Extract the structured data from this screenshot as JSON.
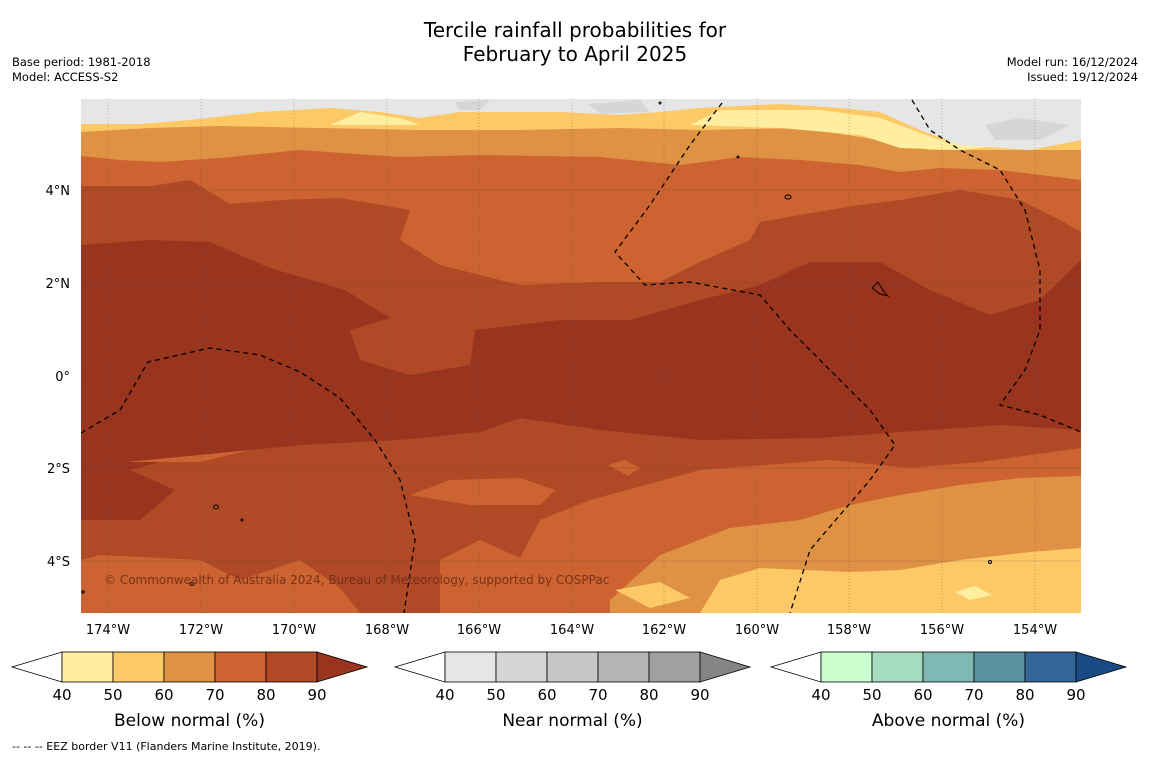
{
  "title": {
    "line1": "Tercile rainfall probabilities for",
    "line2": "February to April 2025"
  },
  "meta_left": {
    "base_period": "Base period: 1981-2018",
    "model": "Model: ACCESS-S2"
  },
  "meta_right": {
    "model_run": "Model run: 16/12/2024",
    "issued": "Issued: 19/12/2024"
  },
  "map": {
    "lon_labels": [
      "174°W",
      "172°W",
      "170°W",
      "168°W",
      "166°W",
      "164°W",
      "162°W",
      "160°W",
      "158°W",
      "156°W",
      "154°W"
    ],
    "lat_labels": [
      "4°N",
      "2°N",
      "0°",
      "2°S",
      "4°S"
    ],
    "copyright": "© Commonwealth of Australia 2024, Bureau of Meteorology, supported by COSPPac",
    "dominant_category": "Below normal",
    "dominant_range": "70-90"
  },
  "colorbars": [
    {
      "title": "Below normal (%)",
      "ticks": [
        "40",
        "50",
        "60",
        "70",
        "80",
        "90"
      ],
      "colors": [
        "#ffffff",
        "#ffeea0",
        "#fdc966",
        "#e09244",
        "#cc6331",
        "#b04a26",
        "#99341e"
      ]
    },
    {
      "title": "Near normal (%)",
      "ticks": [
        "40",
        "50",
        "60",
        "70",
        "80",
        "90"
      ],
      "colors": [
        "#ffffff",
        "#e6e6e6",
        "#d6d6d6",
        "#c6c6c6",
        "#b4b4b4",
        "#a0a0a0",
        "#858585"
      ]
    },
    {
      "title": "Above normal (%)",
      "ticks": [
        "40",
        "50",
        "60",
        "70",
        "80",
        "90"
      ],
      "colors": [
        "#ffffff",
        "#ccffd0",
        "#a4dcc0",
        "#80b8b4",
        "#5a92a2",
        "#336698",
        "#1a4a84"
      ]
    }
  ],
  "footnote": "--  --  -- EEZ border V11 (Flanders Marine Institute, 2019)."
}
